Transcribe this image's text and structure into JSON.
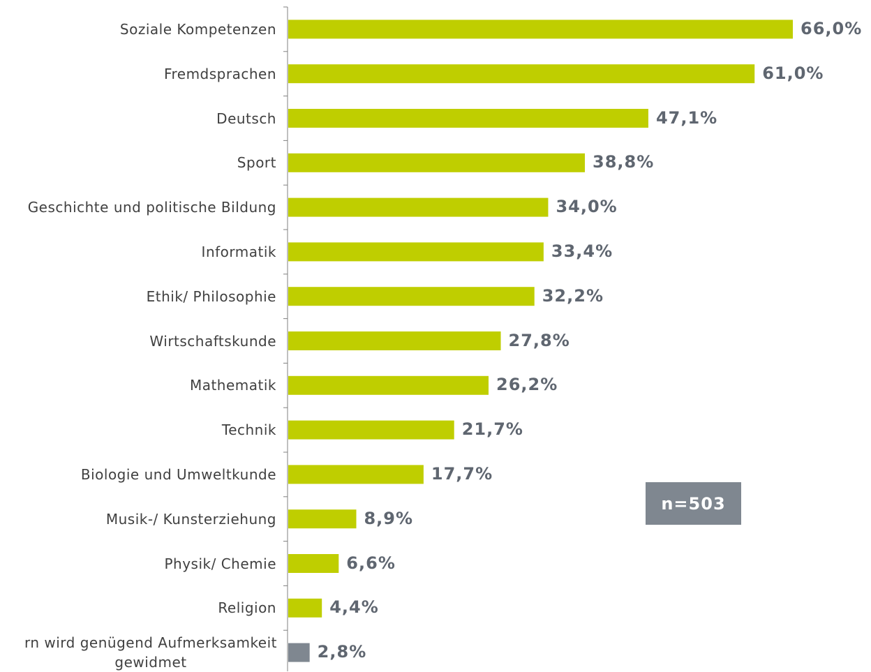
{
  "chart_data": {
    "type": "bar",
    "orientation": "horizontal",
    "categories": [
      "Soziale Kompetenzen",
      "Fremdsprachen",
      "Deutsch",
      "Sport",
      "Geschichte und politische Bildung",
      "Informatik",
      "Ethik/ Philosophie",
      "Wirtschaftskunde",
      "Mathematik",
      "Technik",
      "Biologie und Umweltkunde",
      "Musik-/ Kunsterziehung",
      "Physik/ Chemie",
      "Religion",
      "rn wird genügend Aufmerksamkeit gewidmet"
    ],
    "values": [
      66.0,
      61.0,
      47.1,
      38.8,
      34.0,
      33.4,
      32.2,
      27.8,
      26.2,
      21.7,
      17.7,
      8.9,
      6.6,
      4.4,
      2.8
    ],
    "value_labels": [
      "66,0%",
      "61,0%",
      "47,1%",
      "38,8%",
      "34,0%",
      "33,4%",
      "32,2%",
      "27,8%",
      "26,2%",
      "21,7%",
      "17,7%",
      "8,9%",
      "6,6%",
      "4,4%",
      "2,8%"
    ],
    "colors": [
      "#bfce00",
      "#bfce00",
      "#bfce00",
      "#bfce00",
      "#bfce00",
      "#bfce00",
      "#bfce00",
      "#bfce00",
      "#bfce00",
      "#bfce00",
      "#bfce00",
      "#bfce00",
      "#bfce00",
      "#bfce00",
      "#7f8790"
    ],
    "annotation": "n=503"
  }
}
